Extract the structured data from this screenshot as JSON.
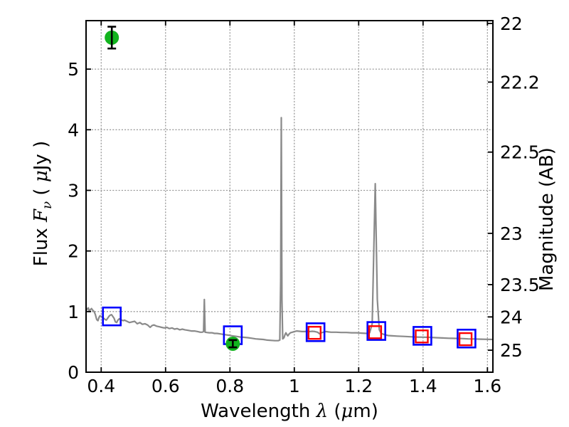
{
  "figure": {
    "background": "#ffffff",
    "border_color": "#000000",
    "grid_color": "#999999",
    "grid_style": "dotted"
  },
  "chart_data": {
    "type": "line",
    "title": "",
    "xlabel_parts": [
      {
        "text": "Wavelength  ",
        "style": "plain"
      },
      {
        "text": "λ",
        "style": "italic"
      },
      {
        "text": " (",
        "style": "plain"
      },
      {
        "text": "μ",
        "style": "italic"
      },
      {
        "text": "m)",
        "style": "plain"
      }
    ],
    "ylabel_left_parts": [
      {
        "text": "Flux  ",
        "style": "plain"
      },
      {
        "text": "F",
        "style": "italic"
      },
      {
        "text": "ν",
        "style": "sub-italic"
      },
      {
        "text": "  ( ",
        "style": "plain"
      },
      {
        "text": "μ",
        "style": "italic"
      },
      {
        "text": "Jy )",
        "style": "plain"
      }
    ],
    "ylabel_right_parts": [
      {
        "text": "Magnitude (AB)",
        "style": "plain"
      }
    ],
    "xlim": [
      0.353,
      1.617
    ],
    "ylim": [
      0,
      5.8
    ],
    "x_ticks": {
      "values": [
        0.4,
        0.6,
        0.8,
        1.0,
        1.2,
        1.4,
        1.6
      ],
      "labels": [
        "0.4",
        "0.6",
        "0.8",
        "1",
        "1.2",
        "1.4",
        "1.6"
      ]
    },
    "y_ticks_left": {
      "values": [
        0,
        1,
        2,
        3,
        4,
        5
      ],
      "labels": [
        "0",
        "1",
        "2",
        "3",
        "4",
        "5"
      ]
    },
    "y_ticks_right": {
      "labels": [
        "22",
        "22.2",
        "22.5",
        "23",
        "23.5",
        "24",
        "25"
      ],
      "flux_positions": [
        5.754,
        4.786,
        3.631,
        2.291,
        1.445,
        0.912,
        0.363
      ]
    },
    "grid": {
      "x_values": [
        0.4,
        0.6,
        0.8,
        1.0,
        1.2,
        1.4,
        1.6
      ],
      "y_values": [
        1,
        2,
        3,
        4,
        5
      ]
    },
    "series": [
      {
        "name": "model-spectrum",
        "type": "line",
        "color": "#8a8a8a",
        "line_width": 2.2,
        "points": [
          [
            0.353,
            1.01
          ],
          [
            0.357,
            1.05
          ],
          [
            0.36,
            1.06
          ],
          [
            0.363,
            1.0
          ],
          [
            0.366,
            1.03
          ],
          [
            0.37,
            1.05
          ],
          [
            0.374,
            1.02
          ],
          [
            0.378,
            1.0
          ],
          [
            0.382,
            0.95
          ],
          [
            0.386,
            0.87
          ],
          [
            0.39,
            0.85
          ],
          [
            0.393,
            0.9
          ],
          [
            0.396,
            0.93
          ],
          [
            0.4,
            0.92
          ],
          [
            0.404,
            0.9
          ],
          [
            0.408,
            0.89
          ],
          [
            0.412,
            0.87
          ],
          [
            0.416,
            0.86
          ],
          [
            0.42,
            0.89
          ],
          [
            0.424,
            0.92
          ],
          [
            0.428,
            0.94
          ],
          [
            0.432,
            0.95
          ],
          [
            0.436,
            0.92
          ],
          [
            0.44,
            0.89
          ],
          [
            0.444,
            0.83
          ],
          [
            0.448,
            0.82
          ],
          [
            0.452,
            0.86
          ],
          [
            0.456,
            0.88
          ],
          [
            0.46,
            0.87
          ],
          [
            0.464,
            0.86
          ],
          [
            0.468,
            0.85
          ],
          [
            0.472,
            0.86
          ],
          [
            0.476,
            0.85
          ],
          [
            0.48,
            0.84
          ],
          [
            0.488,
            0.82
          ],
          [
            0.496,
            0.83
          ],
          [
            0.504,
            0.84
          ],
          [
            0.512,
            0.8
          ],
          [
            0.52,
            0.82
          ],
          [
            0.528,
            0.79
          ],
          [
            0.536,
            0.8
          ],
          [
            0.544,
            0.78
          ],
          [
            0.552,
            0.74
          ],
          [
            0.558,
            0.77
          ],
          [
            0.564,
            0.78
          ],
          [
            0.572,
            0.76
          ],
          [
            0.58,
            0.75
          ],
          [
            0.588,
            0.74
          ],
          [
            0.596,
            0.73
          ],
          [
            0.604,
            0.74
          ],
          [
            0.612,
            0.72
          ],
          [
            0.62,
            0.73
          ],
          [
            0.628,
            0.71
          ],
          [
            0.636,
            0.72
          ],
          [
            0.644,
            0.7
          ],
          [
            0.652,
            0.71
          ],
          [
            0.66,
            0.7
          ],
          [
            0.67,
            0.69
          ],
          [
            0.68,
            0.68
          ],
          [
            0.69,
            0.68
          ],
          [
            0.7,
            0.67
          ],
          [
            0.708,
            0.66
          ],
          [
            0.714,
            0.66
          ],
          [
            0.718,
            0.67
          ],
          [
            0.7205,
            1.2
          ],
          [
            0.723,
            0.66
          ],
          [
            0.728,
            0.655
          ],
          [
            0.736,
            0.65
          ],
          [
            0.744,
            0.65
          ],
          [
            0.752,
            0.64
          ],
          [
            0.76,
            0.64
          ],
          [
            0.772,
            0.63
          ],
          [
            0.784,
            0.62
          ],
          [
            0.796,
            0.61
          ],
          [
            0.808,
            0.6
          ],
          [
            0.82,
            0.59
          ],
          [
            0.832,
            0.58
          ],
          [
            0.844,
            0.575
          ],
          [
            0.856,
            0.57
          ],
          [
            0.868,
            0.56
          ],
          [
            0.88,
            0.55
          ],
          [
            0.892,
            0.545
          ],
          [
            0.904,
            0.54
          ],
          [
            0.916,
            0.53
          ],
          [
            0.928,
            0.525
          ],
          [
            0.94,
            0.52
          ],
          [
            0.95,
            0.52
          ],
          [
            0.955,
            0.53
          ],
          [
            0.9575,
            1.5
          ],
          [
            0.9595,
            4.2
          ],
          [
            0.9615,
            1.2
          ],
          [
            0.964,
            0.55
          ],
          [
            0.968,
            0.57
          ],
          [
            0.971,
            0.62
          ],
          [
            0.974,
            0.65
          ],
          [
            0.977,
            0.62
          ],
          [
            0.98,
            0.6
          ],
          [
            0.984,
            0.63
          ],
          [
            0.988,
            0.65
          ],
          [
            0.994,
            0.66
          ],
          [
            1.0,
            0.67
          ],
          [
            1.008,
            0.68
          ],
          [
            1.016,
            0.675
          ],
          [
            1.024,
            0.67
          ],
          [
            1.032,
            0.67
          ],
          [
            1.04,
            0.675
          ],
          [
            1.048,
            0.67
          ],
          [
            1.056,
            0.675
          ],
          [
            1.064,
            0.67
          ],
          [
            1.072,
            0.66
          ],
          [
            1.078,
            0.635
          ],
          [
            1.084,
            0.65
          ],
          [
            1.09,
            0.66
          ],
          [
            1.098,
            0.67
          ],
          [
            1.106,
            0.665
          ],
          [
            1.114,
            0.66
          ],
          [
            1.13,
            0.66
          ],
          [
            1.146,
            0.655
          ],
          [
            1.162,
            0.655
          ],
          [
            1.178,
            0.65
          ],
          [
            1.194,
            0.65
          ],
          [
            1.21,
            0.645
          ],
          [
            1.226,
            0.64
          ],
          [
            1.234,
            0.65
          ],
          [
            1.242,
            0.8
          ],
          [
            1.2515,
            3.11
          ],
          [
            1.258,
            1.2
          ],
          [
            1.264,
            0.7
          ],
          [
            1.27,
            0.64
          ],
          [
            1.28,
            0.62
          ],
          [
            1.292,
            0.605
          ],
          [
            1.304,
            0.6
          ],
          [
            1.32,
            0.595
          ],
          [
            1.34,
            0.59
          ],
          [
            1.36,
            0.585
          ],
          [
            1.38,
            0.58
          ],
          [
            1.4,
            0.578
          ],
          [
            1.42,
            0.575
          ],
          [
            1.44,
            0.57
          ],
          [
            1.46,
            0.565
          ],
          [
            1.48,
            0.56
          ],
          [
            1.5,
            0.558
          ],
          [
            1.52,
            0.555
          ],
          [
            1.54,
            0.55
          ],
          [
            1.56,
            0.548
          ],
          [
            1.58,
            0.545
          ],
          [
            1.6,
            0.542
          ],
          [
            1.617,
            0.54
          ]
        ]
      },
      {
        "name": "model-photometry-blue-squares",
        "type": "scatter",
        "marker": "open-square",
        "color": "#0000ff",
        "size": 25,
        "stroke_width": 2.6,
        "points": [
          {
            "x": 0.433,
            "y": 0.92
          },
          {
            "x": 0.809,
            "y": 0.61
          },
          {
            "x": 1.066,
            "y": 0.66
          },
          {
            "x": 1.255,
            "y": 0.68
          },
          {
            "x": 1.398,
            "y": 0.6
          },
          {
            "x": 1.535,
            "y": 0.555
          }
        ]
      },
      {
        "name": "model-photometry-red-squares",
        "type": "scatter",
        "marker": "open-square",
        "color": "#ff0000",
        "size": 17,
        "stroke_width": 2.4,
        "points": [
          {
            "x": 1.063,
            "y": 0.65
          },
          {
            "x": 1.251,
            "y": 0.66
          },
          {
            "x": 1.396,
            "y": 0.59
          },
          {
            "x": 1.532,
            "y": 0.545
          }
        ]
      },
      {
        "name": "observed-photometry-green-circles",
        "type": "scatter",
        "marker": "filled-circle",
        "color": "#12b41e",
        "size": 20,
        "error_bar_color": "#000000",
        "error_bar_width": 2.6,
        "points": [
          {
            "x": 0.433,
            "y": 5.52,
            "yerr": 0.18
          },
          {
            "x": 0.809,
            "y": 0.47,
            "yerr": 0.06
          }
        ]
      }
    ]
  }
}
